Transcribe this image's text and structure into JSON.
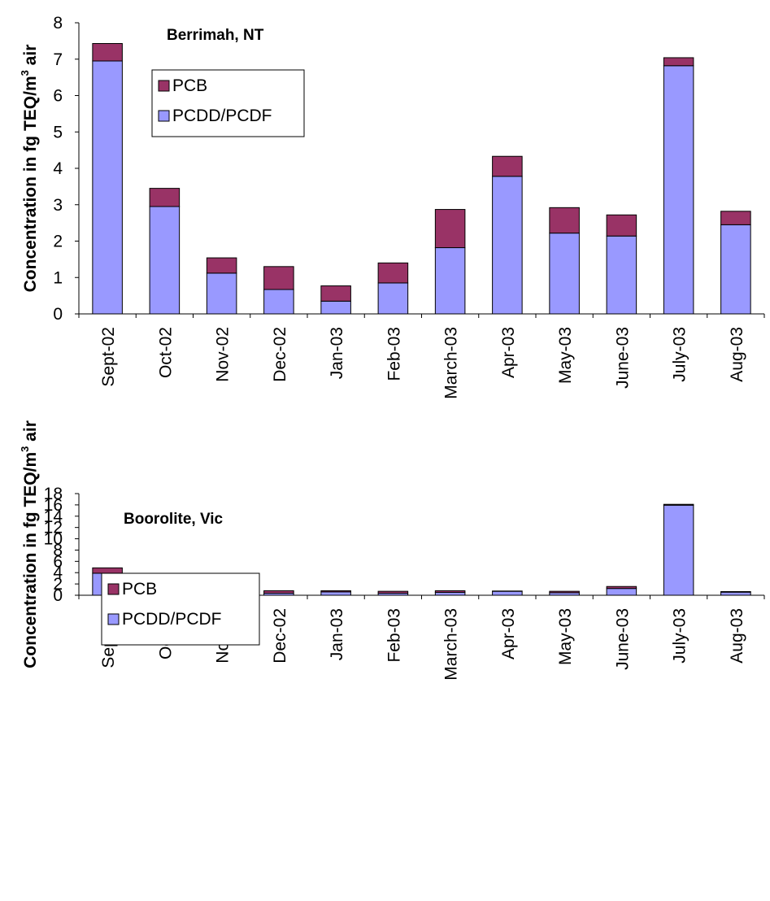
{
  "chart_data": [
    {
      "type": "bar",
      "stacked": true,
      "title": "Berrimah, NT",
      "ylabel": "Concentration in fg TEQ/m",
      "ylabel_sup": "3",
      "ylabel_tail": " air",
      "xlabel": "",
      "ylim": [
        0,
        8
      ],
      "yticks": [
        "0",
        "1",
        "2",
        "3",
        "4",
        "5",
        "6",
        "7",
        "8"
      ],
      "categories": [
        "Sept-02",
        "Oct-02",
        "Nov-02",
        "Dec-02",
        "Jan-03",
        "Feb-03",
        "March-03",
        "Apr-03",
        "May-03",
        "June-03",
        "July-03",
        "Aug-03"
      ],
      "series": [
        {
          "name": "PCDD/PCDF",
          "color": "#9999ff",
          "values": [
            6.95,
            2.95,
            1.12,
            0.67,
            0.35,
            0.85,
            1.82,
            3.78,
            2.22,
            2.14,
            6.82,
            2.45
          ]
        },
        {
          "name": "PCB",
          "color": "#993366",
          "values": [
            0.48,
            0.5,
            0.42,
            0.63,
            0.42,
            0.55,
            1.05,
            0.55,
            0.7,
            0.58,
            0.22,
            0.37
          ]
        }
      ],
      "legend": [
        "PCB",
        "PCDD/PCDF"
      ],
      "legend_position": "upper-left",
      "grid": false
    },
    {
      "type": "bar",
      "stacked": true,
      "title": "Boorolite, Vic",
      "ylabel": "Concentration in fg TEQ/m",
      "ylabel_sup": "3",
      "ylabel_tail": " air",
      "xlabel": "",
      "ylim": [
        0,
        18
      ],
      "yticks": [
        "0",
        "2",
        "4",
        "6",
        "8",
        "10",
        "12",
        "14",
        "16",
        "18"
      ],
      "categories": [
        "Sept-02",
        "Oct-02",
        "Nov-02",
        "Dec-02",
        "Jan-03",
        "Feb-03",
        "March-03",
        "Apr-03",
        "May-03",
        "June-03",
        "July-03",
        "Aug-03"
      ],
      "series": [
        {
          "name": "PCDD/PCDF",
          "color": "#9999ff",
          "values": [
            3.9,
            0.8,
            0.7,
            0.35,
            0.6,
            0.35,
            0.5,
            0.7,
            0.45,
            1.2,
            15.95,
            0.55
          ]
        },
        {
          "name": "PCB",
          "color": "#993366",
          "values": [
            0.95,
            0.15,
            0.6,
            0.45,
            0.2,
            0.35,
            0.3,
            0.05,
            0.25,
            0.35,
            0.15,
            0.1
          ]
        }
      ],
      "legend": [
        "PCB",
        "PCDD/PCDF"
      ],
      "legend_position": "upper-left",
      "grid": false
    }
  ]
}
